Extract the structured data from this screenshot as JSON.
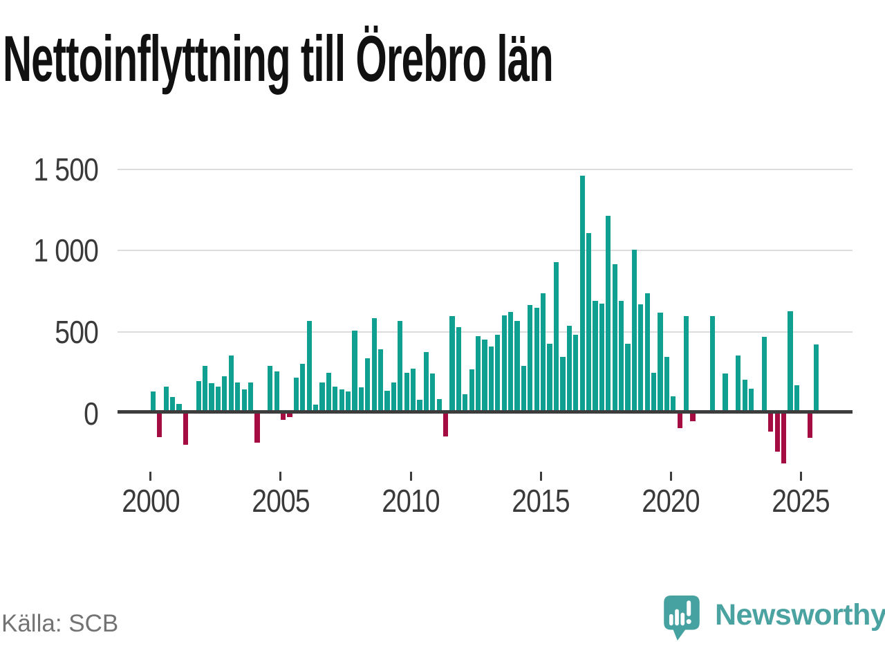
{
  "header": {
    "title": "Nettoinflyttning till Örebro län"
  },
  "footer": {
    "source": "Källa: SCB",
    "brand": {
      "name": "Newsworthy",
      "color": "#4aa2a1",
      "icon": "newsworthy-speech-bubble-chart-icon"
    }
  },
  "chart_data": {
    "type": "bar",
    "title": "Nettoinflyttning till Örebro län",
    "xlabel": "",
    "ylabel": "",
    "source": "Källa: SCB",
    "frequency": "quarterly",
    "start_year": 2000,
    "start_quarter": 1,
    "end_label": "2025Q3",
    "x_tick_labels": [
      "2000",
      "2005",
      "2010",
      "2015",
      "2020",
      "2025"
    ],
    "y_tick_labels": [
      "1 500",
      "1 000",
      "500",
      "0"
    ],
    "y_tick_values": [
      1500,
      1000,
      500,
      0
    ],
    "ylim": [
      -400,
      1550
    ],
    "grid": "horizontal",
    "legend": "none",
    "colors": {
      "positive": "#0fa091",
      "negative": "#a50d42",
      "gridline": "#dcdcdc",
      "zero_axis": "#3d3d3d",
      "tick_label": "#3a3a3a",
      "title": "#111111",
      "source_text": "#737373"
    },
    "values": [
      135,
      -145,
      165,
      100,
      60,
      -190,
      0,
      200,
      295,
      185,
      165,
      230,
      355,
      190,
      150,
      190,
      -180,
      15,
      295,
      260,
      -40,
      -20,
      220,
      305,
      570,
      55,
      190,
      250,
      165,
      150,
      135,
      510,
      160,
      340,
      585,
      395,
      140,
      190,
      570,
      250,
      275,
      85,
      380,
      245,
      90,
      -140,
      600,
      530,
      120,
      270,
      475,
      455,
      410,
      485,
      605,
      625,
      570,
      295,
      665,
      650,
      740,
      430,
      930,
      350,
      540,
      485,
      1460,
      1110,
      690,
      675,
      1215,
      915,
      690,
      430,
      1005,
      670,
      740,
      250,
      620,
      350,
      105,
      -90,
      600,
      -45,
      15,
      0,
      600,
      0,
      245,
      15,
      355,
      210,
      155,
      20,
      470,
      -110,
      -235,
      -305,
      630,
      175,
      0,
      -150,
      425
    ]
  }
}
